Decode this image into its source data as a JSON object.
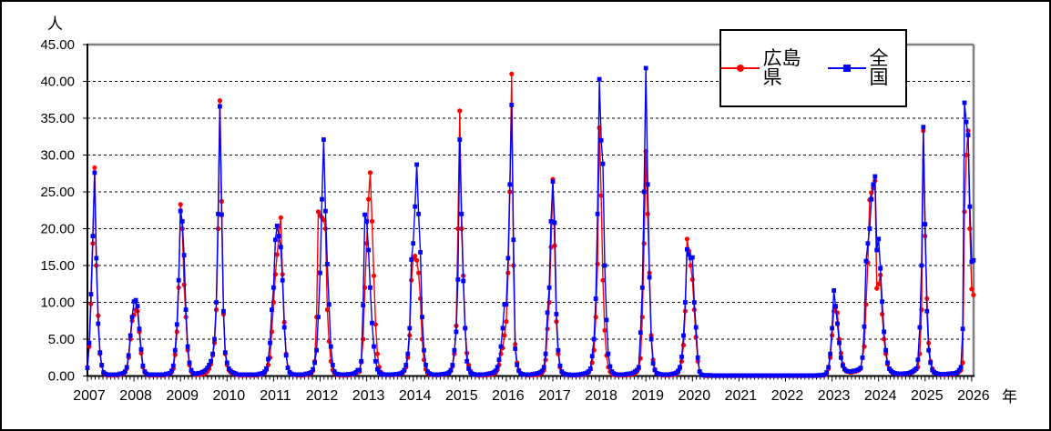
{
  "chart_data": {
    "type": "line",
    "title": "",
    "ylabel": "人",
    "xlabel": "年",
    "ylim": [
      0,
      45
    ],
    "ytick_step": 5,
    "y_tick_labels": [
      "0.00",
      "5.00",
      "10.00",
      "15.00",
      "20.00",
      "25.00",
      "30.00",
      "35.00",
      "40.00",
      "45.00"
    ],
    "x_axis_years": [
      2007,
      2008,
      2009,
      2010,
      2011,
      2012,
      2013,
      2014,
      2015,
      2016,
      2017,
      2018,
      2019,
      2020,
      2021,
      2022,
      2023,
      2024,
      2025,
      2026
    ],
    "x_start_year": 2007,
    "points_per_year": 26,
    "x_minor_tick": "monthly",
    "grid": "horizontal-dashed",
    "legend_position": "top-right-inside",
    "series": [
      {
        "id": "hiroshima",
        "name": "広島県",
        "color": "#FF0000",
        "marker": "circle",
        "values_by_year": [
          [
            1.2,
            4,
            9.8,
            18,
            28.3,
            15,
            8.2,
            3,
            1.4,
            0.4,
            0.2,
            0.1,
            0.1,
            0.1,
            0.1,
            0.1,
            0.1,
            0.1,
            0.2,
            0.2,
            0.3,
            0.5,
            1,
            2.5,
            5,
            7.5
          ],
          [
            8.3,
            9,
            8.8,
            6,
            3.1,
            1.2,
            0.5,
            0.2,
            0.1,
            0.1,
            0.1,
            0.1,
            0.1,
            0.1,
            0.1,
            0.1,
            0.1,
            0.1,
            0.2,
            0.2,
            0.3,
            0.5,
            1,
            2.9,
            6,
            12
          ],
          [
            23.3,
            20,
            12.4,
            8,
            3.5,
            1.5,
            0.6,
            0.3,
            0.2,
            0.2,
            0.2,
            0.2,
            0.3,
            0.3,
            0.4,
            0.6,
            1,
            1.6,
            2.8,
            4.5,
            9,
            20,
            37.4,
            23.7,
            8.4,
            3
          ],
          [
            1.5,
            0.8,
            0.5,
            0.4,
            0.3,
            0.2,
            0.2,
            0.1,
            0.1,
            0.1,
            0.1,
            0.1,
            0.1,
            0.1,
            0.1,
            0.1,
            0.1,
            0.1,
            0.2,
            0.2,
            0.3,
            0.4,
            0.8,
            1.5,
            2.5,
            6
          ],
          [
            10,
            13.8,
            16.5,
            19,
            21.5,
            13.8,
            7.3,
            3,
            1.2,
            0.5,
            0.3,
            0.2,
            0.2,
            0.1,
            0.1,
            0.1,
            0.1,
            0.1,
            0.2,
            0.2,
            0.3,
            0.4,
            0.7,
            2,
            8,
            22.3
          ],
          [
            21.8,
            21.5,
            21.2,
            20,
            9,
            4.7,
            2,
            0.8,
            0.4,
            0.2,
            0.15,
            0.1,
            0.1,
            0.1,
            0.1,
            0.1,
            0.15,
            0.15,
            0.2,
            0.3,
            0.4,
            0.5,
            0.6,
            1.9,
            5,
            12
          ],
          [
            18,
            24,
            27.6,
            21,
            13.6,
            7,
            3,
            1.2,
            0.5,
            0.3,
            0.2,
            0.15,
            0.15,
            0.15,
            0.15,
            0.15,
            0.2,
            0.2,
            0.25,
            0.3,
            0.45,
            0.7,
            1.2,
            2.5,
            5.5,
            13
          ],
          [
            16,
            16.3,
            15.7,
            14,
            10.5,
            5,
            2.2,
            0.9,
            0.4,
            0.25,
            0.2,
            0.15,
            0.15,
            0.15,
            0.15,
            0.15,
            0.2,
            0.2,
            0.25,
            0.3,
            0.4,
            0.7,
            1.3,
            3,
            6.8,
            20
          ],
          [
            36,
            20,
            13.6,
            6.5,
            3.1,
            1.5,
            0.7,
            0.35,
            0.2,
            0.15,
            0.1,
            0.1,
            0.1,
            0.1,
            0.1,
            0.15,
            0.15,
            0.2,
            0.25,
            0.3,
            0.4,
            0.8,
            1.5,
            3,
            3.8,
            5.5
          ],
          [
            7.4,
            14,
            25,
            41,
            15,
            4.3,
            1.8,
            0.8,
            0.4,
            0.25,
            0.2,
            0.15,
            0.1,
            0.1,
            0.1,
            0.15,
            0.15,
            0.2,
            0.25,
            0.3,
            0.45,
            0.8,
            2.2,
            6.4,
            10,
            17.5
          ],
          [
            26.7,
            17.7,
            7.4,
            3,
            1.2,
            0.5,
            0.3,
            0.2,
            0.15,
            0.1,
            0.1,
            0.1,
            0.1,
            0.1,
            0.1,
            0.15,
            0.15,
            0.2,
            0.25,
            0.3,
            0.5,
            0.9,
            1.8,
            3.5,
            8,
            15.2
          ],
          [
            33.7,
            24.5,
            13,
            6.2,
            2.8,
            1.2,
            0.6,
            0.3,
            0.2,
            0.15,
            0.1,
            0.1,
            0.1,
            0.1,
            0.1,
            0.15,
            0.15,
            0.2,
            0.25,
            0.3,
            0.4,
            0.6,
            1,
            2.4,
            8,
            18
          ],
          [
            30.5,
            22,
            14,
            5.5,
            2.2,
            0.9,
            0.4,
            0.25,
            0.2,
            0.15,
            0.1,
            0.1,
            0.1,
            0.1,
            0.15,
            0.15,
            0.2,
            0.3,
            0.5,
            1,
            2,
            4.2,
            8.8,
            18.6,
            17,
            15
          ],
          [
            13.1,
            9,
            5.3,
            2,
            0.6,
            0.2,
            0.1,
            0.05,
            0.05,
            0.05,
            0.05,
            0.05,
            0.05,
            0.05,
            0.05,
            0.05,
            0.05,
            0.05,
            0.05,
            0.05,
            0.05,
            0.05,
            0.05,
            0.05,
            0.05,
            0.05
          ],
          [
            0.05,
            0.05,
            0.05,
            0.05,
            0.05,
            0.05,
            0.05,
            0.05,
            0.05,
            0.05,
            0.05,
            0.05,
            0.05,
            0.05,
            0.05,
            0.05,
            0.05,
            0.05,
            0.05,
            0.05,
            0.05,
            0.05,
            0.05,
            0.05,
            0.05,
            0.05
          ],
          [
            0.05,
            0.05,
            0.05,
            0.05,
            0.05,
            0.05,
            0.05,
            0.05,
            0.05,
            0.05,
            0.05,
            0.05,
            0.05,
            0.05,
            0.05,
            0.05,
            0.05,
            0.05,
            0.05,
            0.1,
            0.1,
            0.1,
            0.15,
            0.4,
            1,
            2.5
          ],
          [
            5.5,
            8.8,
            9.3,
            8.6,
            5,
            3.1,
            1.6,
            1,
            0.7,
            0.6,
            0.5,
            0.5,
            0.6,
            0.6,
            0.7,
            0.8,
            1,
            2.5,
            4,
            9.7,
            15.4,
            23.9,
            24.9,
            25.5,
            26.5,
            11.9
          ],
          [
            12.5,
            13.7,
            8.4,
            5,
            3,
            1.6,
            0.9,
            0.6,
            0.4,
            0.35,
            0.3,
            0.3,
            0.25,
            0.25,
            0.3,
            0.3,
            0.3,
            0.35,
            0.4,
            0.5,
            0.7,
            0.9,
            1.2,
            3,
            9,
            33.3
          ],
          [
            19,
            10.5,
            4.5,
            2,
            1,
            0.6,
            0.4,
            0.3,
            0.25,
            0.2,
            0.2,
            0.2,
            0.2,
            0.25,
            0.25,
            0.3,
            0.3,
            0.35,
            0.4,
            0.6,
            0.8,
            1.8,
            22.3,
            30,
            33.3,
            20
          ],
          [
            11.8,
            11
          ]
        ]
      },
      {
        "id": "zenkoku",
        "name": "全国",
        "color": "#0000FF",
        "marker": "square",
        "values_by_year": [
          [
            1.1,
            4.5,
            11.1,
            19,
            27.6,
            16,
            7.1,
            3.2,
            1.5,
            0.5,
            0.3,
            0.2,
            0.2,
            0.2,
            0.2,
            0.2,
            0.2,
            0.2,
            0.3,
            0.3,
            0.4,
            0.6,
            1.2,
            2.8,
            5.5,
            8
          ],
          [
            10.1,
            10.3,
            9.5,
            6.4,
            3.6,
            1.4,
            0.6,
            0.3,
            0.2,
            0.2,
            0.2,
            0.2,
            0.2,
            0.2,
            0.2,
            0.2,
            0.2,
            0.2,
            0.3,
            0.3,
            0.4,
            0.7,
            1.4,
            3.5,
            7,
            13
          ],
          [
            22.4,
            21,
            16.4,
            9,
            4,
            1.8,
            0.8,
            0.4,
            0.3,
            0.3,
            0.4,
            0.4,
            0.5,
            0.6,
            0.8,
            1.1,
            1.5,
            2,
            3,
            5,
            10,
            22,
            36.6,
            21.9,
            8.8,
            3.2
          ],
          [
            1.8,
            1,
            0.7,
            0.5,
            0.4,
            0.3,
            0.2,
            0.2,
            0.2,
            0.2,
            0.2,
            0.2,
            0.2,
            0.2,
            0.2,
            0.2,
            0.2,
            0.2,
            0.3,
            0.3,
            0.4,
            0.6,
            1,
            2.3,
            4.5,
            9
          ],
          [
            12,
            18.5,
            20.4,
            19,
            17.5,
            13,
            6.6,
            2.8,
            1.1,
            0.5,
            0.3,
            0.2,
            0.2,
            0.2,
            0.2,
            0.2,
            0.2,
            0.2,
            0.3,
            0.3,
            0.4,
            0.5,
            0.9,
            1.8,
            3.5,
            8
          ],
          [
            14,
            24,
            32.1,
            22.4,
            15.2,
            9.7,
            4,
            1.5,
            0.6,
            0.3,
            0.25,
            0.2,
            0.2,
            0.2,
            0.2,
            0.2,
            0.25,
            0.25,
            0.3,
            0.35,
            0.5,
            0.8,
            0.8,
            2,
            9.6,
            21.9
          ],
          [
            21,
            17.1,
            12,
            7.2,
            4,
            2,
            0.9,
            0.5,
            0.3,
            0.25,
            0.2,
            0.2,
            0.2,
            0.2,
            0.2,
            0.2,
            0.25,
            0.25,
            0.3,
            0.35,
            0.5,
            0.8,
            1.5,
            3,
            6.5,
            15.8
          ],
          [
            18,
            23,
            28.7,
            22,
            16.8,
            8,
            3.5,
            1.5,
            0.6,
            0.35,
            0.25,
            0.2,
            0.2,
            0.2,
            0.2,
            0.2,
            0.25,
            0.25,
            0.3,
            0.35,
            0.5,
            0.8,
            1.5,
            3.5,
            6,
            13.1
          ],
          [
            32.1,
            22,
            12.9,
            6.5,
            2,
            1,
            0.5,
            0.3,
            0.25,
            0.2,
            0.2,
            0.2,
            0.2,
            0.2,
            0.2,
            0.25,
            0.3,
            0.35,
            0.4,
            0.5,
            0.7,
            1.2,
            2.2,
            4,
            6.5,
            9.7
          ],
          [
            9.7,
            16,
            26,
            36.8,
            18.5,
            3.7,
            1.5,
            0.7,
            0.35,
            0.25,
            0.2,
            0.2,
            0.2,
            0.2,
            0.2,
            0.25,
            0.3,
            0.35,
            0.4,
            0.5,
            0.7,
            1.2,
            3,
            8.6,
            12,
            21
          ],
          [
            26.4,
            20.8,
            8.4,
            3.5,
            1.4,
            0.6,
            0.35,
            0.25,
            0.2,
            0.2,
            0.15,
            0.15,
            0.15,
            0.15,
            0.2,
            0.2,
            0.25,
            0.3,
            0.35,
            0.45,
            0.6,
            1,
            2.7,
            5,
            10.5,
            22
          ],
          [
            40.3,
            32,
            28.8,
            15,
            7.6,
            3,
            1.3,
            0.6,
            0.35,
            0.25,
            0.2,
            0.2,
            0.2,
            0.2,
            0.2,
            0.25,
            0.3,
            0.3,
            0.35,
            0.45,
            0.6,
            0.8,
            1.2,
            5.9,
            12,
            25
          ],
          [
            41.8,
            26,
            13.4,
            5,
            1.7,
            0.8,
            0.4,
            0.3,
            0.25,
            0.2,
            0.2,
            0.2,
            0.2,
            0.2,
            0.25,
            0.3,
            0.35,
            0.45,
            0.7,
            1.2,
            2.6,
            5.5,
            10,
            17.2,
            16.5,
            16
          ],
          [
            16.1,
            10,
            6.6,
            2.5,
            0.6,
            0.2,
            0.1,
            0.1,
            0.1,
            0.1,
            0.1,
            0.05,
            0.05,
            0.05,
            0.05,
            0.05,
            0.05,
            0.05,
            0.05,
            0.05,
            0.05,
            0.05,
            0.05,
            0.05,
            0.05,
            0.05
          ],
          [
            0.05,
            0.05,
            0.05,
            0.05,
            0.05,
            0.05,
            0.05,
            0.05,
            0.05,
            0.05,
            0.05,
            0.05,
            0.05,
            0.05,
            0.05,
            0.05,
            0.05,
            0.05,
            0.05,
            0.05,
            0.05,
            0.05,
            0.05,
            0.05,
            0.05,
            0.05
          ],
          [
            0.05,
            0.05,
            0.05,
            0.05,
            0.05,
            0.05,
            0.05,
            0.05,
            0.05,
            0.05,
            0.05,
            0.05,
            0.05,
            0.05,
            0.05,
            0.05,
            0.05,
            0.05,
            0.1,
            0.1,
            0.1,
            0.15,
            0.2,
            0.5,
            1.2,
            3
          ],
          [
            6.5,
            11.6,
            9.5,
            7.1,
            4.5,
            2.5,
            1.4,
            0.9,
            0.7,
            0.6,
            0.6,
            0.6,
            0.7,
            0.7,
            0.8,
            0.9,
            1.1,
            2.5,
            6.7,
            15.6,
            18,
            20,
            24,
            26,
            27.1,
            17.1
          ],
          [
            18.6,
            14.6,
            10.1,
            6,
            3.5,
            1.8,
            1,
            0.7,
            0.5,
            0.4,
            0.35,
            0.3,
            0.3,
            0.3,
            0.3,
            0.35,
            0.35,
            0.4,
            0.5,
            0.6,
            0.8,
            1,
            2.2,
            6.6,
            15,
            33.8
          ],
          [
            20.6,
            8.8,
            3.5,
            1.8,
            0.8,
            0.5,
            0.4,
            0.3,
            0.25,
            0.25,
            0.25,
            0.25,
            0.25,
            0.3,
            0.3,
            0.35,
            0.35,
            0.4,
            0.5,
            0.8,
            1.2,
            6.4,
            37.1,
            34.5,
            32.7,
            23
          ],
          [
            15.5,
            15.7
          ]
        ]
      }
    ]
  }
}
